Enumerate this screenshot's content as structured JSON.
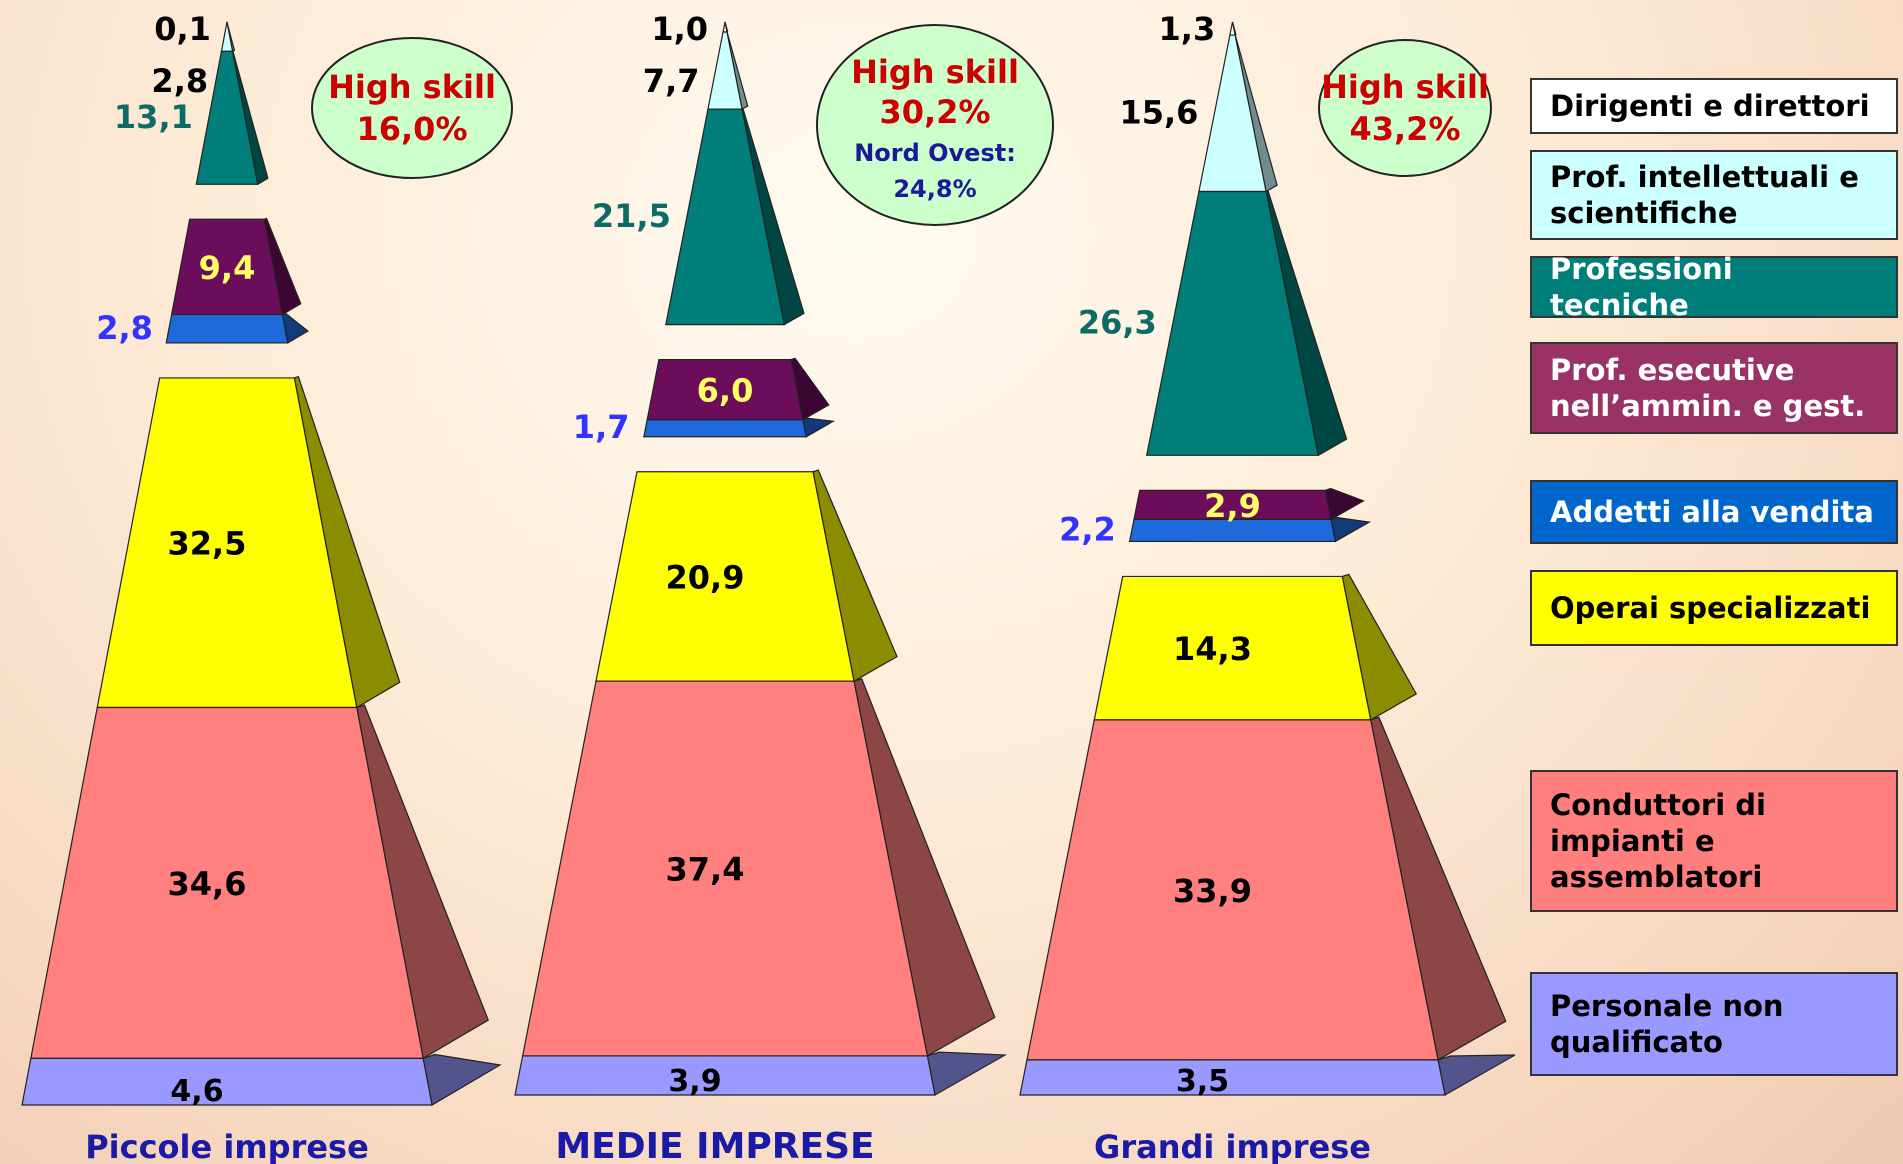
{
  "chart_data": {
    "type": "pyramid",
    "categories": [
      "Dirigenti e direttori",
      "Prof. intellettuali e scientifiche",
      "Professioni tecniche",
      "Prof. esecutive nell’ammin. e gest.",
      "Addetti alla vendita",
      "Operai specializzati",
      "Conduttori di impianti e assemblatori",
      "Personale non qualificato"
    ],
    "colors": [
      "#ffffff",
      "#ccffff",
      "#007f7a",
      "#6b0d5a",
      "#1f6adb",
      "#ffff00",
      "#ff807f",
      "#9999ff"
    ],
    "series": [
      {
        "name": "Piccole imprese",
        "values": [
          0.1,
          2.8,
          13.1,
          9.4,
          2.8,
          32.5,
          34.6,
          4.6
        ],
        "labels": [
          "0,1",
          "2,8",
          "13,1",
          "9,4",
          "2,8",
          "32,5",
          "34,6",
          "4,6"
        ],
        "callout": {
          "title": "High skill",
          "value": "16,0%"
        }
      },
      {
        "name": "MEDIE IMPRESE",
        "values": [
          1.0,
          7.7,
          21.5,
          6.0,
          1.7,
          20.9,
          37.4,
          3.9
        ],
        "labels": [
          "1,0",
          "7,7",
          "21,5",
          "6,0",
          "1,7",
          "20,9",
          "37,4",
          "3,9"
        ],
        "callout": {
          "title": "High skill",
          "value": "30,2%",
          "note_label": "Nord Ovest:",
          "note_value": "24,8%"
        }
      },
      {
        "name": "Grandi imprese",
        "values": [
          1.3,
          15.6,
          26.3,
          2.9,
          2.2,
          14.3,
          33.9,
          3.5
        ],
        "labels": [
          "1,3",
          "15,6",
          "26,3",
          "2,9",
          "2,2",
          "14,3",
          "33,9",
          "3,5"
        ],
        "callout": {
          "title": "High skill",
          "value": "43,2%"
        }
      }
    ]
  },
  "legend": [
    {
      "lines": [
        "Dirigenti e direttori"
      ],
      "bg": "#ffffff",
      "fg": "#000000"
    },
    {
      "lines": [
        "Prof. intellettuali e",
        "scientifiche"
      ],
      "bg": "#ccffff",
      "fg": "#000000"
    },
    {
      "lines": [
        "Professioni tecniche"
      ],
      "bg": "#007f7a",
      "fg": "#ffffff"
    },
    {
      "lines": [
        "Prof. esecutive",
        "nell’ammin. e gest."
      ],
      "bg": "#993366",
      "fg": "#ffffff"
    },
    {
      "lines": [
        "Addetti alla vendita"
      ],
      "bg": "#0066cc",
      "fg": "#ffffff"
    },
    {
      "lines": [
        "Operai specializzati"
      ],
      "bg": "#ffff00",
      "fg": "#000000"
    },
    {
      "lines": [
        "Conduttori di",
        "impianti e",
        "assemblatori"
      ],
      "bg": "#ff7f7f",
      "fg": "#000000"
    },
    {
      "lines": [
        "Personale non",
        "qualificato"
      ],
      "bg": "#9999ff",
      "fg": "#000000"
    }
  ]
}
